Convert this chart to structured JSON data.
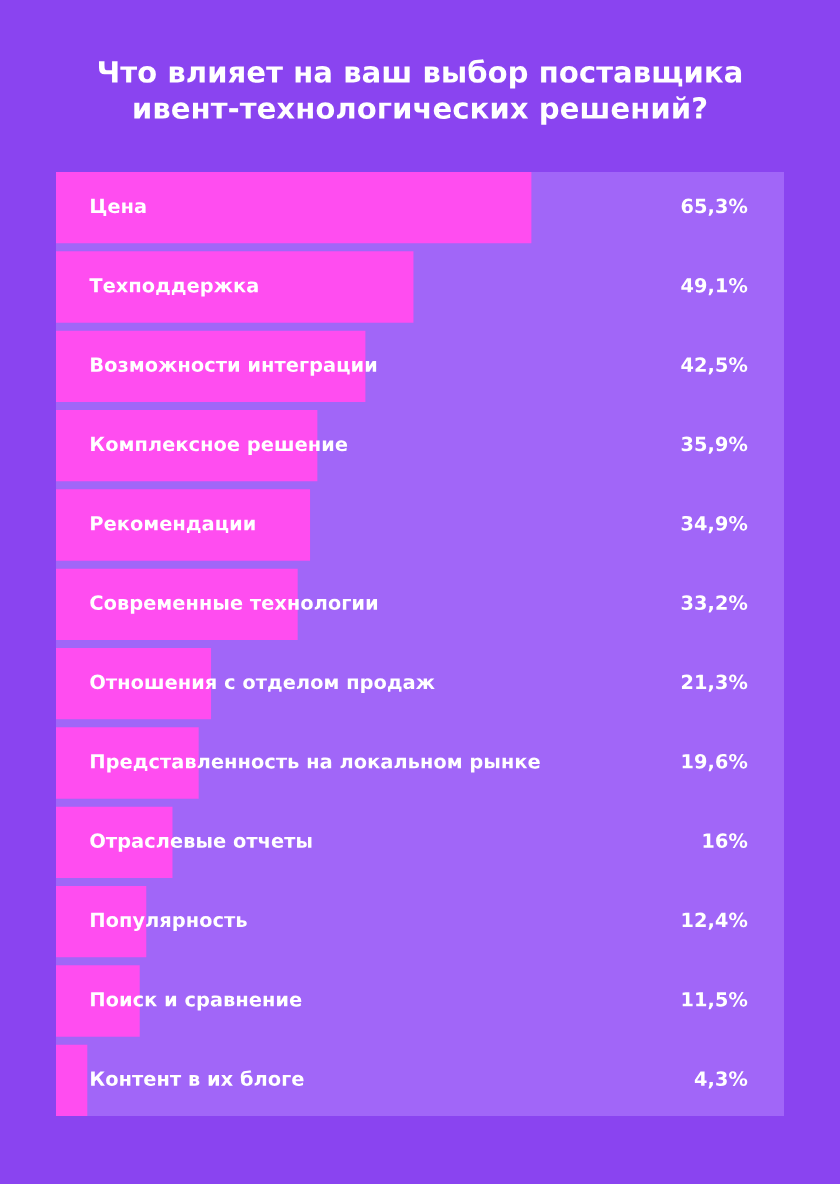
{
  "chart_data": {
    "type": "bar",
    "orientation": "horizontal",
    "title": "Что влияет на ваш выбор поставщика\nивент-технологических решений?",
    "categories": [
      "Цена",
      "Техподдержка",
      "Возможности интеграции",
      "Комплексное решение",
      "Рекомендации",
      "Современные технологии",
      "Отношения с отделом продаж",
      "Представленность на локальном рынке",
      "Отраслевые отчеты",
      "Популярность",
      "Поиск и сравнение",
      "Контент в их блоге"
    ],
    "values": [
      65.3,
      49.1,
      42.5,
      35.9,
      34.9,
      33.2,
      21.3,
      19.6,
      16,
      12.4,
      11.5,
      4.3
    ],
    "value_labels": [
      "65,3%",
      "49,1%",
      "42,5%",
      "35,9%",
      "34,9%",
      "33,2%",
      "21,3%",
      "19,6%",
      "16%",
      "12,4%",
      "11,5%",
      "4,3%"
    ],
    "color": "#ff4df0",
    "bands": [
      {
        "axis": "x",
        "from": 0,
        "to": 100,
        "color": "#a166f8"
      }
    ],
    "xlim": [
      0,
      100
    ],
    "tick_labels": false,
    "grid": false
  }
}
